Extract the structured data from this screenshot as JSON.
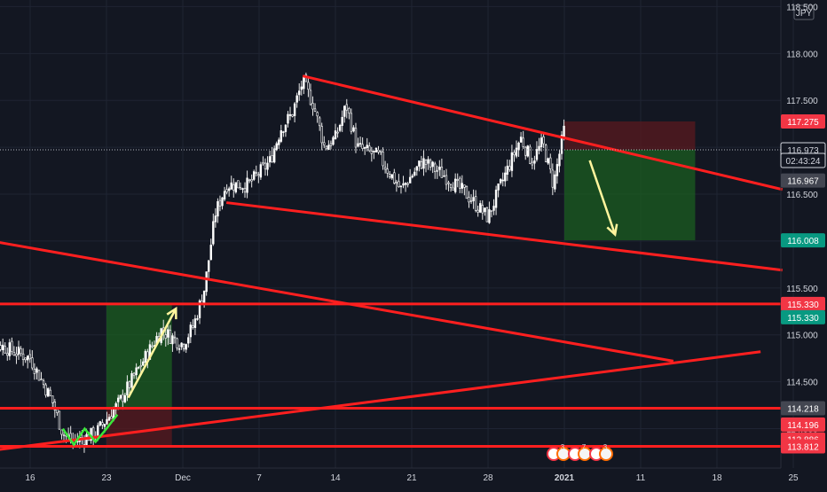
{
  "chart_data": {
    "type": "candlestick",
    "currency_label": "JPY",
    "background": "#131722",
    "colors": {
      "up": "#ffffff",
      "down": "#ffffff",
      "trendline": "#ff1f1f",
      "grid": "#1f2433",
      "axis_text": "#d1d4dc",
      "profit_zone": "#1b5e20",
      "loss_zone": "#5a1a1f",
      "arrow": "#fff59d",
      "green_pattern": "#39e639"
    },
    "ylim": [
      113.58,
      118.57
    ],
    "y_ticks": [
      118.5,
      118.0,
      117.5,
      117.0,
      116.5,
      116.0,
      115.5,
      115.0,
      114.5,
      114.0
    ],
    "y_tick_labels": [
      "118.500",
      "118.000",
      "117.500",
      "117.000",
      "116.500",
      "116.000",
      "115.500",
      "115.000",
      "114.500",
      "114.000"
    ],
    "x_ticks": [
      {
        "label": "16",
        "bold": false
      },
      {
        "label": "23",
        "bold": false
      },
      {
        "label": "Dec",
        "bold": false
      },
      {
        "label": "7",
        "bold": false
      },
      {
        "label": "14",
        "bold": false
      },
      {
        "label": "21",
        "bold": false
      },
      {
        "label": "28",
        "bold": false
      },
      {
        "label": "2021",
        "bold": true
      },
      {
        "label": "11",
        "bold": false
      },
      {
        "label": "18",
        "bold": false
      },
      {
        "label": "25",
        "bold": false
      }
    ],
    "price_labels": [
      {
        "value": 117.275,
        "text": "117.275",
        "bg": "#f23645",
        "color": "#ffffff"
      },
      {
        "value": 116.973,
        "text": "116.973",
        "bg": "#131722",
        "color": "#d1d4dc",
        "border": "#d1d4dc"
      },
      {
        "value": 116.86,
        "text": "02:43:24",
        "bg": "#131722",
        "color": "#d1d4dc",
        "border": "#d1d4dc"
      },
      {
        "value": 116.967,
        "text": "116.967",
        "bg": "#434651",
        "color": "#ffffff",
        "dy": 34
      },
      {
        "value": 116.008,
        "text": "116.008",
        "bg": "#089981",
        "color": "#ffffff"
      },
      {
        "value": 115.33,
        "text": "115.330",
        "bg": "#f23645",
        "color": "#ffffff"
      },
      {
        "value": 115.33,
        "text": "115.330",
        "bg": "#089981",
        "color": "#ffffff",
        "dy": 15
      },
      {
        "value": 114.218,
        "text": "114.218",
        "bg": "#434651",
        "color": "#ffffff"
      },
      {
        "value": 114.196,
        "text": "114.196",
        "bg": "#f23645",
        "color": "#ffffff",
        "dy": 16
      },
      {
        "value": 113.886,
        "text": "113.886",
        "bg": "#f23645",
        "color": "#ffffff"
      },
      {
        "value": 113.812,
        "text": "113.812",
        "bg": "#f23645",
        "color": "#ffffff"
      }
    ],
    "horizontal_levels": [
      115.33,
      114.218,
      113.812
    ],
    "trendlines": [
      {
        "from": [
          "Nov 10",
          116.05
        ],
        "to": [
          "Jan 14",
          114.72
        ]
      },
      {
        "from": [
          "Nov 10",
          113.73
        ],
        "to": [
          "Jan 22",
          114.82
        ]
      },
      {
        "from": [
          "Dec 11",
          117.76
        ],
        "to": [
          "Jan 24",
          116.55
        ]
      },
      {
        "from": [
          "Dec 4",
          116.41
        ],
        "to": [
          "Jan 24",
          115.69
        ]
      }
    ],
    "trade_boxes": [
      {
        "entry": 114.218,
        "stop": 113.812,
        "target": 115.33,
        "from": "Nov 23",
        "to": "Nov 29"
      },
      {
        "entry": 116.973,
        "stop": 117.275,
        "target": 116.008,
        "from": "Jan 4",
        "to": "Jan 16"
      }
    ],
    "price_path_keypoints": [
      [
        "Nov 11",
        115.3
      ],
      [
        "Nov 13",
        114.9
      ],
      [
        "Nov 16",
        114.75
      ],
      [
        "Nov 18",
        114.3
      ],
      [
        "Nov 19",
        113.95
      ],
      [
        "Nov 20",
        113.86
      ],
      [
        "Nov 22",
        113.95
      ],
      [
        "Nov 24",
        114.25
      ],
      [
        "Nov 26",
        114.65
      ],
      [
        "Nov 28",
        115.05
      ],
      [
        "Nov 30",
        114.9
      ],
      [
        "Dec 1",
        115.1
      ],
      [
        "Dec 2",
        115.5
      ],
      [
        "Dec 3",
        116.3
      ],
      [
        "Dec 4",
        116.6
      ],
      [
        "Dec 6",
        116.6
      ],
      [
        "Dec 8",
        116.85
      ],
      [
        "Dec 9",
        117.2
      ],
      [
        "Dec 10",
        117.35
      ],
      [
        "Dec 11",
        117.7
      ],
      [
        "Dec 12",
        117.45
      ],
      [
        "Dec 13",
        117.0
      ],
      [
        "Dec 14",
        117.1
      ],
      [
        "Dec 15",
        117.45
      ],
      [
        "Dec 16",
        117.0
      ],
      [
        "Dec 18",
        116.9
      ],
      [
        "Dec 20",
        116.55
      ],
      [
        "Dec 22",
        116.85
      ],
      [
        "Dec 24",
        116.7
      ],
      [
        "Dec 26",
        116.5
      ],
      [
        "Dec 28",
        116.25
      ],
      [
        "Dec 29",
        116.55
      ],
      [
        "Dec 31",
        117.1
      ],
      [
        "Jan 1",
        116.85
      ],
      [
        "Jan 2",
        117.05
      ],
      [
        "Jan 3",
        116.6
      ],
      [
        "Jan 4",
        117.2
      ]
    ],
    "event_badges": [
      "3",
      "7",
      "3"
    ]
  }
}
